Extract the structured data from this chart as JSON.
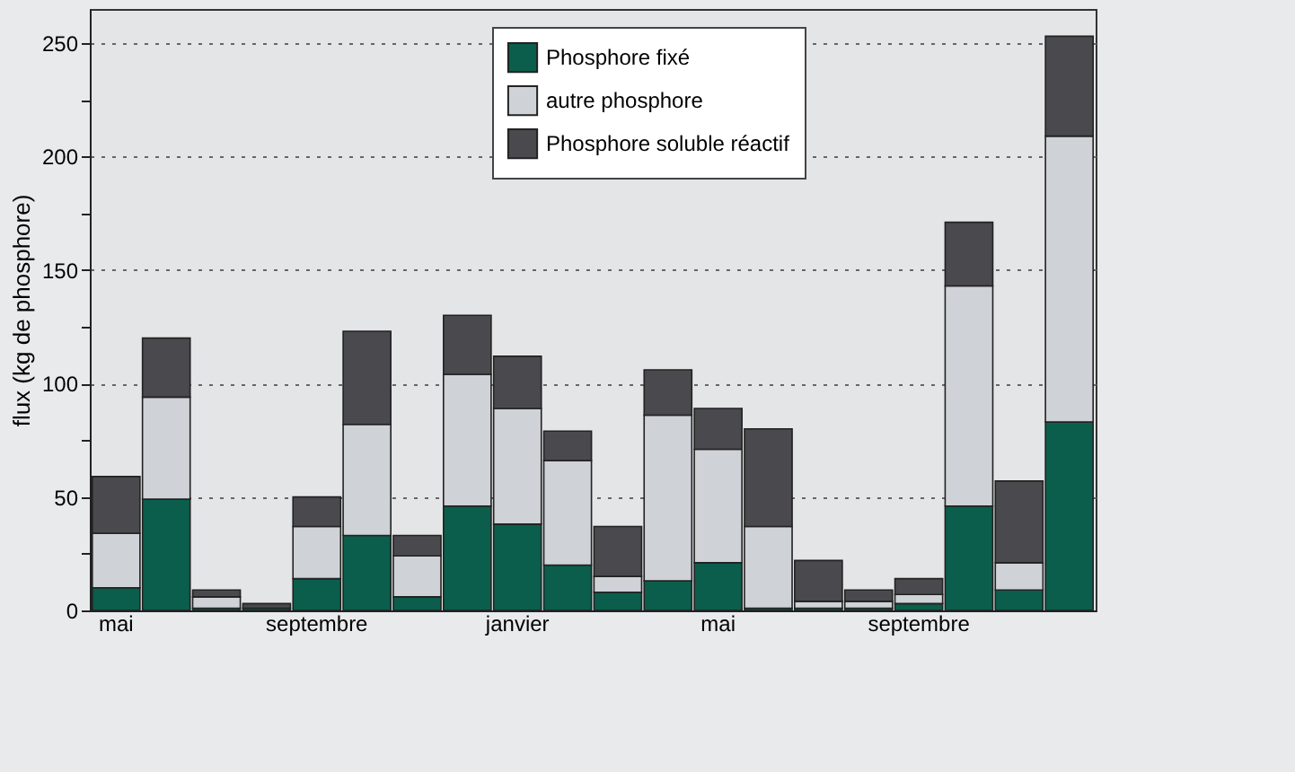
{
  "chart_data": {
    "type": "bar",
    "stacked": true,
    "ylabel": "flux (kg de phosphore)",
    "categories": [
      "mai",
      null,
      null,
      null,
      "septembre",
      null,
      null,
      null,
      "janvier",
      null,
      null,
      null,
      "mai",
      null,
      null,
      null,
      "septembre",
      null,
      null,
      null
    ],
    "series": [
      {
        "name": "Phosphore fixé",
        "color": "#0b5e4c",
        "values": [
          10,
          49,
          1,
          1,
          14,
          33,
          6,
          46,
          38,
          20,
          8,
          13,
          21,
          1,
          1,
          1,
          3,
          46,
          9,
          83
        ]
      },
      {
        "name": "autre phosphore",
        "color": "#cfd2d6",
        "values": [
          24,
          45,
          5,
          null,
          23,
          49,
          18,
          58,
          51,
          46,
          7,
          73,
          50,
          36,
          3,
          3,
          4,
          97,
          12,
          126
        ]
      },
      {
        "name": "Phosphore soluble réactif",
        "color": "#4a4a4e",
        "values": [
          25,
          26,
          3,
          2,
          13,
          41,
          9,
          26,
          23,
          13,
          22,
          20,
          18,
          43,
          18,
          5,
          7,
          28,
          36,
          44
        ]
      }
    ],
    "ylim": [
      0,
      265
    ],
    "yticks": [
      0,
      {
        "value": 25,
        "label": null
      },
      50,
      {
        "value": 75,
        "label": null
      },
      100,
      {
        "value": 125,
        "label": null
      },
      150,
      {
        "value": 175,
        "label": null
      },
      200,
      {
        "value": 225,
        "label": null
      },
      250
    ],
    "grid": "y",
    "legend": "top right"
  }
}
